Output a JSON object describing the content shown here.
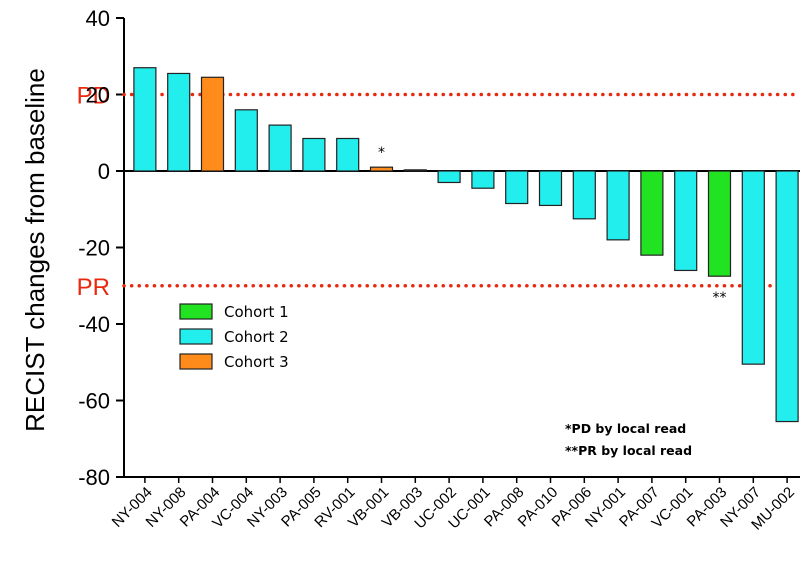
{
  "chart_data": {
    "type": "bar",
    "ylabel": "RECIST changes from baseline",
    "xlabel": "",
    "ylim": [
      -80,
      40
    ],
    "yticks": [
      40,
      20,
      0,
      -20,
      -40,
      -60,
      -80
    ],
    "ytick_labels": [
      "40",
      "20",
      "0",
      "-20",
      "-40",
      "-60",
      "-80"
    ],
    "categories": [
      "NY-004",
      "NY-008",
      "PA-004",
      "VC-004",
      "NY-003",
      "PA-005",
      "RV-001",
      "VB-001",
      "VB-003",
      "UC-002",
      "UC-001",
      "PA-008",
      "PA-010",
      "PA-006",
      "NY-001",
      "PA-007",
      "VC-001",
      "PA-003",
      "NY-007",
      "MU-002"
    ],
    "values": [
      27,
      25.5,
      24.5,
      16,
      12,
      8.5,
      8.5,
      1,
      0.3,
      -3,
      -4.5,
      -8.5,
      -9,
      -12.5,
      -18,
      -22,
      -26,
      -27.5,
      -50.5,
      -65.5
    ],
    "cohort": [
      2,
      2,
      3,
      2,
      2,
      2,
      2,
      3,
      2,
      2,
      2,
      2,
      2,
      2,
      2,
      1,
      2,
      1,
      2,
      2
    ],
    "legend": [
      {
        "label": "Cohort 1",
        "color": "#21e321"
      },
      {
        "label": "Cohort 2",
        "color": "#22eeee"
      },
      {
        "label": "Cohort 3",
        "color": "#ff8c1a"
      }
    ],
    "reference_lines": [
      {
        "label": "PD",
        "value": 20,
        "color": "#e8290f",
        "style": "dotted"
      },
      {
        "label": "PR",
        "value": -30,
        "color": "#e8290f",
        "style": "dotted"
      }
    ],
    "bar_markers": [
      {
        "category": "VB-001",
        "text": "*"
      },
      {
        "category": "PA-003",
        "text": "**"
      }
    ],
    "notes": [
      "*PD by local read",
      "**PR by local read"
    ],
    "legend_position": "center-left",
    "grid": false
  }
}
